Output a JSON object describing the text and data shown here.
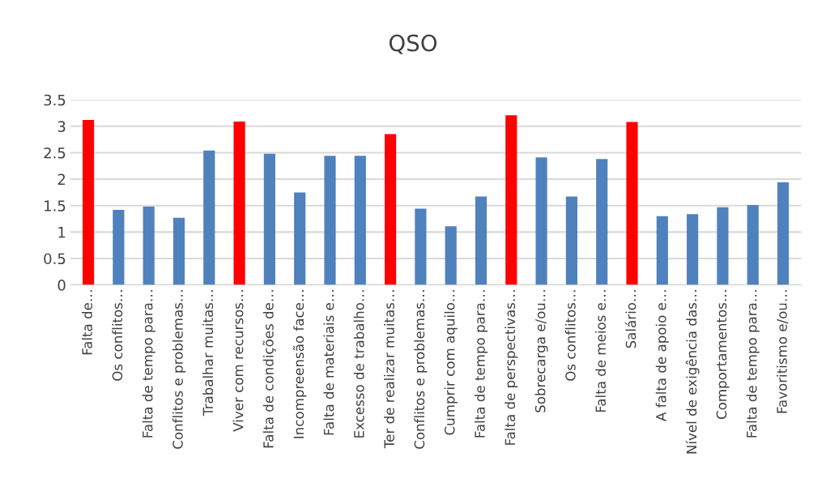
{
  "chart_data": {
    "type": "bar",
    "title": "QSO",
    "categories": [
      "Falta de…",
      "Os conflitos…",
      "Falta de tempo para…",
      "Conflitos e problemas…",
      "Trabalhar muitas…",
      "Viver com recursos…",
      "Falta de condições de…",
      "Incompreensão face…",
      "Falta de materiais e…",
      "Excesso de trabalho…",
      "Ter de realizar muitas…",
      "Conflitos e problemas…",
      "Cumprir com aquilo…",
      "Falta de tempo para…",
      "Falta de perspectivas…",
      "Sobrecarga e/ou…",
      "Os conflitos…",
      "Falta de meios e…",
      "Salário…",
      "A falta de apoio e…",
      "Nível de exigência das…",
      "Comportamentos…",
      "Falta de tempo para…",
      "Favoritismo e/ou…"
    ],
    "values": [
      3.12,
      1.42,
      1.48,
      1.27,
      2.54,
      3.09,
      2.48,
      1.75,
      2.44,
      2.44,
      2.85,
      1.44,
      1.11,
      1.67,
      3.21,
      2.41,
      1.67,
      2.38,
      3.08,
      1.3,
      1.34,
      1.47,
      1.51,
      1.94
    ],
    "colors": [
      "#ff0000",
      "#4f81bd",
      "#4f81bd",
      "#4f81bd",
      "#4f81bd",
      "#ff0000",
      "#4f81bd",
      "#4f81bd",
      "#4f81bd",
      "#4f81bd",
      "#ff0000",
      "#4f81bd",
      "#4f81bd",
      "#4f81bd",
      "#ff0000",
      "#4f81bd",
      "#4f81bd",
      "#4f81bd",
      "#ff0000",
      "#4f81bd",
      "#4f81bd",
      "#4f81bd",
      "#4f81bd",
      "#4f81bd"
    ],
    "ylim": [
      0,
      3.5
    ],
    "yticks": [
      0,
      0.5,
      1,
      1.5,
      2,
      2.5,
      3,
      3.5
    ],
    "grid": "y",
    "legend": false
  }
}
